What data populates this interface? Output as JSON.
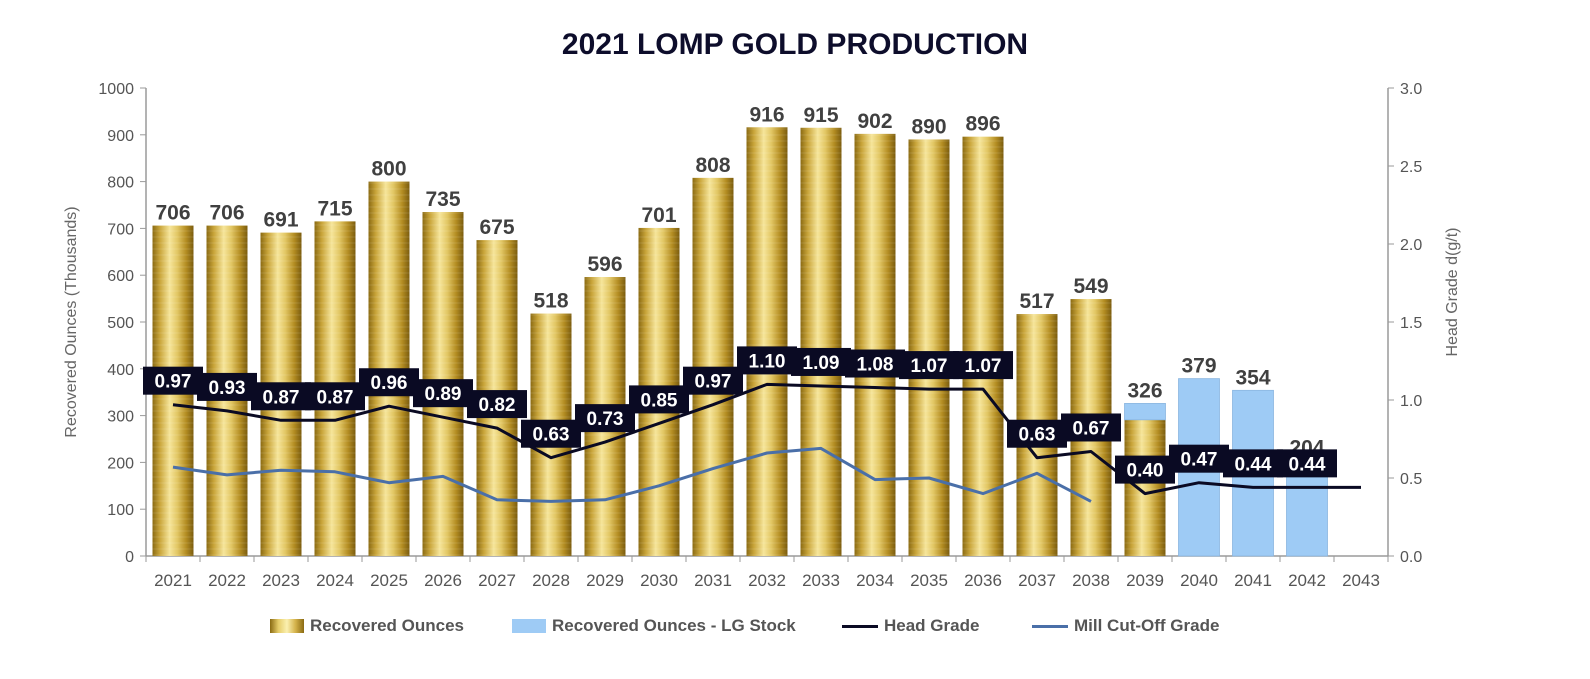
{
  "chart_data": {
    "type": "bar",
    "title": "2021 LOMP GOLD PRODUCTION",
    "ylabel": "Recovered Ounces (Thousands)",
    "y2label": "Head Grade d(g/t)",
    "ylim": [
      0,
      1000
    ],
    "y2lim": [
      0,
      3.0
    ],
    "yticks": [
      "0",
      "100",
      "200",
      "300",
      "400",
      "500",
      "600",
      "700",
      "800",
      "900",
      "1000"
    ],
    "y2ticks": [
      "0.0",
      "0.5",
      "1.0",
      "1.5",
      "2.0",
      "2.5",
      "3.0"
    ],
    "categories": [
      "2021",
      "2022",
      "2023",
      "2024",
      "2025",
      "2026",
      "2027",
      "2028",
      "2029",
      "2030",
      "2031",
      "2032",
      "2033",
      "2034",
      "2035",
      "2036",
      "2037",
      "2038",
      "2039",
      "2040",
      "2041",
      "2042",
      "2043"
    ],
    "series": [
      {
        "name": "Recovered Ounces",
        "kind": "bar",
        "color": "#c9a227",
        "values": [
          706,
          706,
          691,
          715,
          800,
          735,
          675,
          518,
          596,
          701,
          808,
          916,
          915,
          902,
          890,
          896,
          517,
          549,
          291,
          0,
          0,
          0,
          0
        ]
      },
      {
        "name": "Recovered Ounces - LG Stock",
        "kind": "bar",
        "color": "#9ecbf5",
        "values": [
          0,
          0,
          0,
          0,
          0,
          0,
          0,
          0,
          0,
          0,
          0,
          0,
          0,
          0,
          0,
          0,
          0,
          0,
          35,
          379,
          354,
          204,
          0
        ]
      },
      {
        "name": "Head Grade",
        "kind": "line",
        "axis": "right",
        "color": "#0a0a23",
        "values": [
          0.97,
          0.93,
          0.87,
          0.87,
          0.96,
          0.89,
          0.82,
          0.63,
          0.73,
          0.85,
          0.97,
          1.1,
          1.09,
          1.08,
          1.07,
          1.07,
          0.63,
          0.67,
          0.4,
          0.47,
          0.44,
          0.44,
          0.44
        ]
      },
      {
        "name": "Mill Cut-Off Grade",
        "kind": "line",
        "axis": "right",
        "color": "#4a6fa8",
        "values": [
          0.57,
          0.52,
          0.55,
          0.54,
          0.47,
          0.51,
          0.36,
          0.35,
          0.36,
          0.45,
          0.56,
          0.66,
          0.69,
          0.49,
          0.5,
          0.4,
          0.53,
          0.35,
          null,
          null,
          null,
          null,
          null
        ]
      }
    ],
    "bar_total_labels": [
      "706",
      "706",
      "691",
      "715",
      "800",
      "735",
      "675",
      "518",
      "596",
      "701",
      "808",
      "916",
      "915",
      "902",
      "890",
      "896",
      "517",
      "549",
      "326",
      "379",
      "354",
      "204",
      ""
    ],
    "head_grade_labels": [
      "0.97",
      "0.93",
      "0.87",
      "0.87",
      "0.96",
      "0.89",
      "0.82",
      "0.63",
      "0.73",
      "0.85",
      "0.97",
      "1.10",
      "1.09",
      "1.08",
      "1.07",
      "1.07",
      "0.63",
      "0.67",
      "0.40",
      "0.47",
      "0.44",
      "0.44",
      ""
    ],
    "legend": [
      "Recovered Ounces",
      "Recovered Ounces - LG Stock",
      "Head Grade",
      "Mill Cut-Off Grade"
    ],
    "legend_position": "bottom",
    "grid": false
  }
}
